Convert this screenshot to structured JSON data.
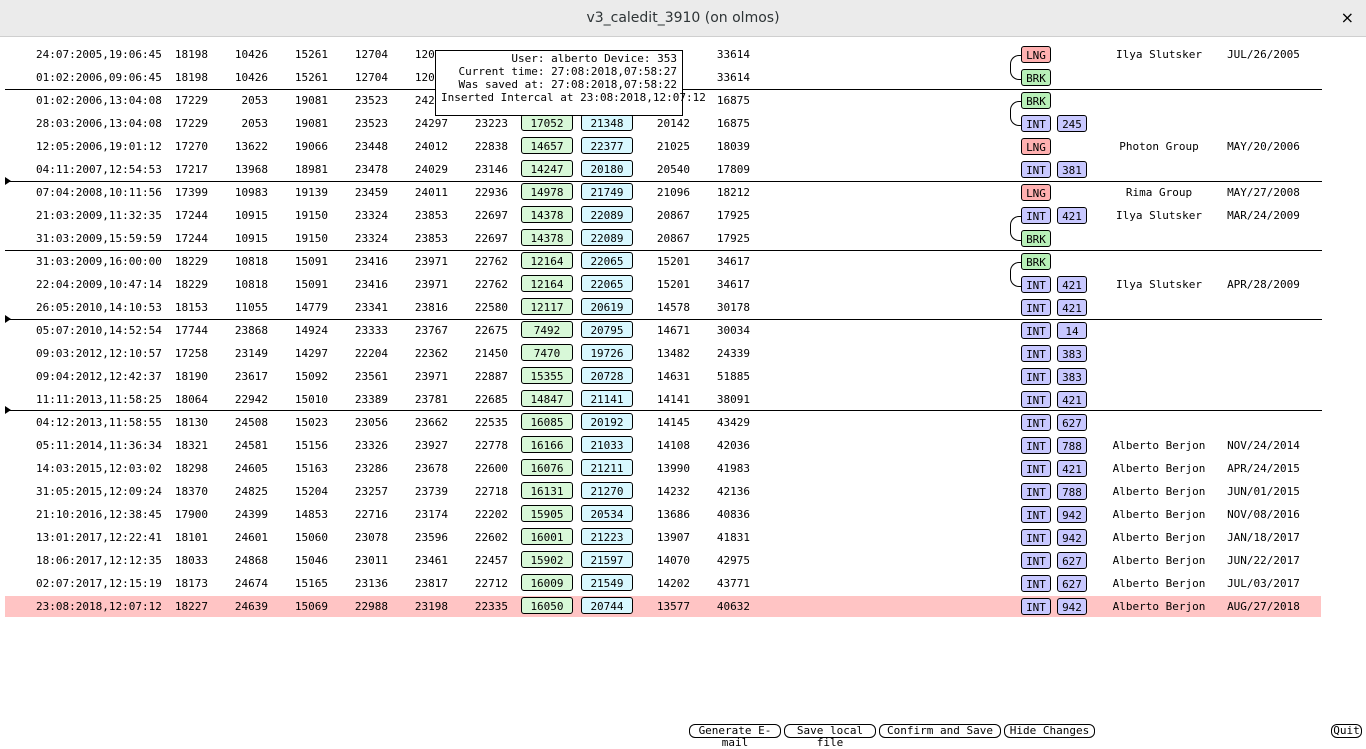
{
  "window": {
    "title": "v3_caledit_3910 (on olmos)",
    "close_label": "×"
  },
  "tooltip": {
    "line1": "User: alberto Device: 353",
    "line2": "Current time: 27:08:2018,07:58:27",
    "line3": "Was saved at: 27:08:2018,07:58:22",
    "line4": "Inserted Intercal at 23:08:2018,12:07:12"
  },
  "rows": [
    {
      "dt": "24:07:2005,19:06:45",
      "c1": "18198",
      "c2": "10426",
      "c3": "15261",
      "c4": "12704",
      "c5": "12087",
      "c6": "",
      "g": "",
      "b": "",
      "c7": "",
      "c8": "33614",
      "tag": "LNG",
      "num": "",
      "user": "Ilya Slutsker",
      "date": "JUL/26/2005"
    },
    {
      "dt": "01:02:2006,09:06:45",
      "c1": "18198",
      "c2": "10426",
      "c3": "15261",
      "c4": "12704",
      "c5": "12087",
      "c6": "",
      "g": "",
      "b": "",
      "c7": "",
      "c8": "33614",
      "tag": "BRK",
      "num": "",
      "user": "",
      "date": ""
    },
    {
      "dt": "01:02:2006,13:04:08",
      "c1": "17229",
      "c2": "2053",
      "c3": "19081",
      "c4": "23523",
      "c5": "24297",
      "c6": "",
      "g": "",
      "b": "",
      "c7": "",
      "c8": "16875",
      "tag": "BRK",
      "num": "",
      "user": "",
      "date": ""
    },
    {
      "dt": "28:03:2006,13:04:08",
      "c1": "17229",
      "c2": "2053",
      "c3": "19081",
      "c4": "23523",
      "c5": "24297",
      "c6": "23223",
      "g": "17052",
      "b": "21348",
      "c7": "20142",
      "c8": "16875",
      "tag": "INT",
      "num": "245",
      "user": "",
      "date": ""
    },
    {
      "dt": "12:05:2006,19:01:12",
      "c1": "17270",
      "c2": "13622",
      "c3": "19066",
      "c4": "23448",
      "c5": "24012",
      "c6": "22838",
      "g": "14657",
      "b": "22377",
      "c7": "21025",
      "c8": "18039",
      "tag": "LNG",
      "num": "",
      "user": "Photon Group",
      "date": "MAY/20/2006"
    },
    {
      "dt": "04:11:2007,12:54:53",
      "c1": "17217",
      "c2": "13968",
      "c3": "18981",
      "c4": "23478",
      "c5": "24029",
      "c6": "23146",
      "g": "14247",
      "b": "20180",
      "c7": "20540",
      "c8": "17809",
      "tag": "INT",
      "num": "381",
      "user": "",
      "date": ""
    },
    {
      "dt": "07:04:2008,10:11:56",
      "c1": "17399",
      "c2": "10983",
      "c3": "19139",
      "c4": "23459",
      "c5": "24011",
      "c6": "22936",
      "g": "14978",
      "b": "21749",
      "c7": "21096",
      "c8": "18212",
      "tag": "LNG",
      "num": "",
      "user": "Rima Group",
      "date": "MAY/27/2008"
    },
    {
      "dt": "21:03:2009,11:32:35",
      "c1": "17244",
      "c2": "10915",
      "c3": "19150",
      "c4": "23324",
      "c5": "23853",
      "c6": "22697",
      "g": "14378",
      "b": "22089",
      "c7": "20867",
      "c8": "17925",
      "tag": "INT",
      "num": "421",
      "user": "Ilya Slutsker",
      "date": "MAR/24/2009"
    },
    {
      "dt": "31:03:2009,15:59:59",
      "c1": "17244",
      "c2": "10915",
      "c3": "19150",
      "c4": "23324",
      "c5": "23853",
      "c6": "22697",
      "g": "14378",
      "b": "22089",
      "c7": "20867",
      "c8": "17925",
      "tag": "BRK",
      "num": "",
      "user": "",
      "date": ""
    },
    {
      "dt": "31:03:2009,16:00:00",
      "c1": "18229",
      "c2": "10818",
      "c3": "15091",
      "c4": "23416",
      "c5": "23971",
      "c6": "22762",
      "g": "12164",
      "b": "22065",
      "c7": "15201",
      "c8": "34617",
      "tag": "BRK",
      "num": "",
      "user": "",
      "date": ""
    },
    {
      "dt": "22:04:2009,10:47:14",
      "c1": "18229",
      "c2": "10818",
      "c3": "15091",
      "c4": "23416",
      "c5": "23971",
      "c6": "22762",
      "g": "12164",
      "b": "22065",
      "c7": "15201",
      "c8": "34617",
      "tag": "INT",
      "num": "421",
      "user": "Ilya Slutsker",
      "date": "APR/28/2009"
    },
    {
      "dt": "26:05:2010,14:10:53",
      "c1": "18153",
      "c2": "11055",
      "c3": "14779",
      "c4": "23341",
      "c5": "23816",
      "c6": "22580",
      "g": "12117",
      "b": "20619",
      "c7": "14578",
      "c8": "30178",
      "tag": "INT",
      "num": "421",
      "user": "",
      "date": ""
    },
    {
      "dt": "05:07:2010,14:52:54",
      "c1": "17744",
      "c2": "23868",
      "c3": "14924",
      "c4": "23333",
      "c5": "23767",
      "c6": "22675",
      "g": "7492",
      "b": "20795",
      "c7": "14671",
      "c8": "30034",
      "tag": "INT",
      "num": "14",
      "user": "",
      "date": ""
    },
    {
      "dt": "09:03:2012,12:10:57",
      "c1": "17258",
      "c2": "23149",
      "c3": "14297",
      "c4": "22204",
      "c5": "22362",
      "c6": "21450",
      "g": "7470",
      "b": "19726",
      "c7": "13482",
      "c8": "24339",
      "tag": "INT",
      "num": "383",
      "user": "",
      "date": ""
    },
    {
      "dt": "09:04:2012,12:42:37",
      "c1": "18190",
      "c2": "23617",
      "c3": "15092",
      "c4": "23561",
      "c5": "23971",
      "c6": "22887",
      "g": "15355",
      "b": "20728",
      "c7": "14631",
      "c8": "51885",
      "tag": "INT",
      "num": "383",
      "user": "",
      "date": ""
    },
    {
      "dt": "11:11:2013,11:58:25",
      "c1": "18064",
      "c2": "22942",
      "c3": "15010",
      "c4": "23389",
      "c5": "23781",
      "c6": "22685",
      "g": "14847",
      "b": "21141",
      "c7": "14141",
      "c8": "38091",
      "tag": "INT",
      "num": "421",
      "user": "",
      "date": ""
    },
    {
      "dt": "04:12:2013,11:58:55",
      "c1": "18130",
      "c2": "24508",
      "c3": "15023",
      "c4": "23056",
      "c5": "23662",
      "c6": "22535",
      "g": "16085",
      "b": "20192",
      "c7": "14145",
      "c8": "43429",
      "tag": "INT",
      "num": "627",
      "user": "",
      "date": ""
    },
    {
      "dt": "05:11:2014,11:36:34",
      "c1": "18321",
      "c2": "24581",
      "c3": "15156",
      "c4": "23326",
      "c5": "23927",
      "c6": "22778",
      "g": "16166",
      "b": "21033",
      "c7": "14108",
      "c8": "42036",
      "tag": "INT",
      "num": "788",
      "user": "Alberto Berjon",
      "date": "NOV/24/2014"
    },
    {
      "dt": "14:03:2015,12:03:02",
      "c1": "18298",
      "c2": "24605",
      "c3": "15163",
      "c4": "23286",
      "c5": "23678",
      "c6": "22600",
      "g": "16076",
      "b": "21211",
      "c7": "13990",
      "c8": "41983",
      "tag": "INT",
      "num": "421",
      "user": "Alberto Berjon",
      "date": "APR/24/2015"
    },
    {
      "dt": "31:05:2015,12:09:24",
      "c1": "18370",
      "c2": "24825",
      "c3": "15204",
      "c4": "23257",
      "c5": "23739",
      "c6": "22718",
      "g": "16131",
      "b": "21270",
      "c7": "14232",
      "c8": "42136",
      "tag": "INT",
      "num": "788",
      "user": "Alberto Berjon",
      "date": "JUN/01/2015"
    },
    {
      "dt": "21:10:2016,12:38:45",
      "c1": "17900",
      "c2": "24399",
      "c3": "14853",
      "c4": "22716",
      "c5": "23174",
      "c6": "22202",
      "g": "15905",
      "b": "20534",
      "c7": "13686",
      "c8": "40836",
      "tag": "INT",
      "num": "942",
      "user": "Alberto Berjon",
      "date": "NOV/08/2016"
    },
    {
      "dt": "13:01:2017,12:22:41",
      "c1": "18101",
      "c2": "24601",
      "c3": "15060",
      "c4": "23078",
      "c5": "23596",
      "c6": "22602",
      "g": "16001",
      "b": "21223",
      "c7": "13907",
      "c8": "41831",
      "tag": "INT",
      "num": "942",
      "user": "Alberto Berjon",
      "date": "JAN/18/2017"
    },
    {
      "dt": "18:06:2017,12:12:35",
      "c1": "18033",
      "c2": "24868",
      "c3": "15046",
      "c4": "23011",
      "c5": "23461",
      "c6": "22457",
      "g": "15902",
      "b": "21597",
      "c7": "14070",
      "c8": "42975",
      "tag": "INT",
      "num": "627",
      "user": "Alberto Berjon",
      "date": "JUN/22/2017"
    },
    {
      "dt": "02:07:2017,12:15:19",
      "c1": "18173",
      "c2": "24674",
      "c3": "15165",
      "c4": "23136",
      "c5": "23817",
      "c6": "22712",
      "g": "16009",
      "b": "21549",
      "c7": "14202",
      "c8": "43771",
      "tag": "INT",
      "num": "627",
      "user": "Alberto Berjon",
      "date": "JUL/03/2017"
    },
    {
      "dt": "23:08:2018,12:07:12",
      "c1": "18227",
      "c2": "24639",
      "c3": "15069",
      "c4": "22988",
      "c5": "23198",
      "c6": "22335",
      "g": "16050",
      "b": "20744",
      "c7": "13577",
      "c8": "40632",
      "tag": "INT",
      "num": "942",
      "user": "Alberto Berjon",
      "date": "AUG/27/2018"
    }
  ],
  "buttons": {
    "generate_email": "Generate E-mail",
    "save_local": "Save local file",
    "confirm_save": "Confirm and Save",
    "hide_changes": "Hide Changes",
    "quit": "Quit"
  }
}
